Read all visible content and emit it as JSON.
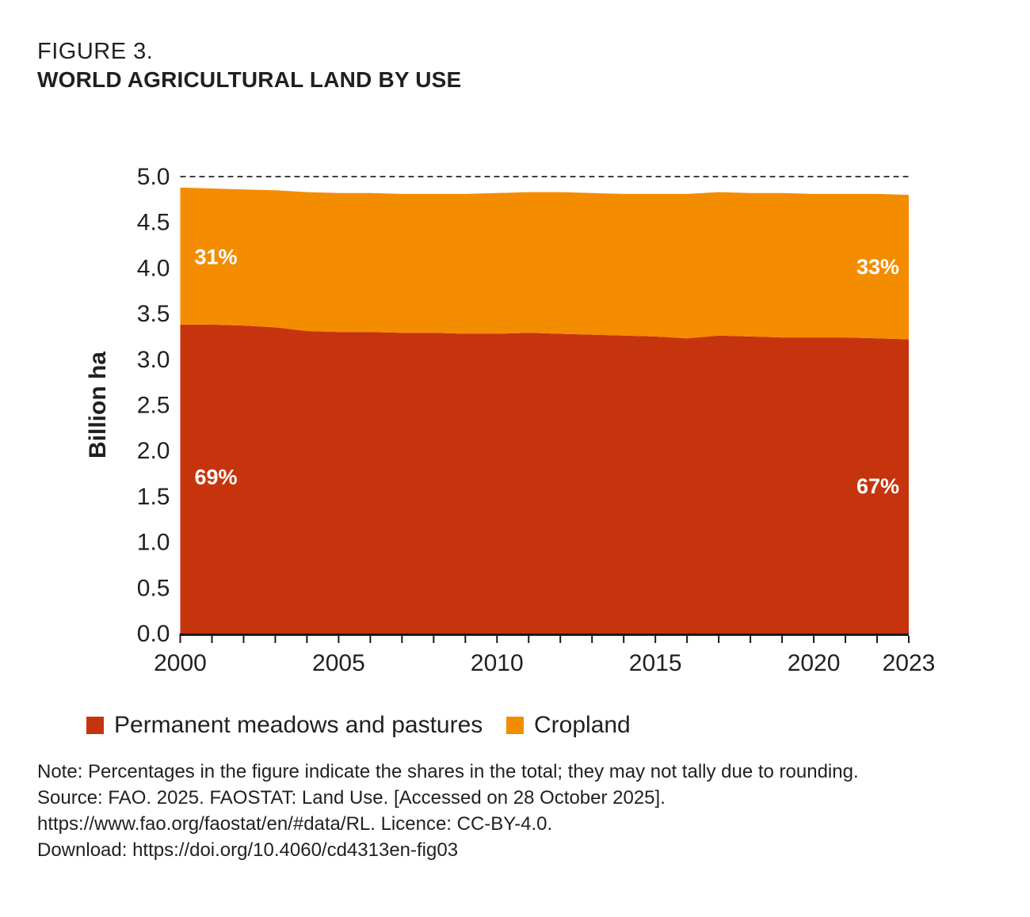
{
  "header": {
    "figure_label": "FIGURE 3.",
    "title": "WORLD AGRICULTURAL LAND BY USE"
  },
  "chart_data": {
    "type": "area",
    "stacked": true,
    "title": "WORLD AGRICULTURAL LAND BY USE",
    "xlabel": "",
    "ylabel": "Billion ha",
    "ylim": [
      0,
      5.0
    ],
    "grid": "none",
    "legend_position": "bottom",
    "x": [
      2000,
      2001,
      2002,
      2003,
      2004,
      2005,
      2006,
      2007,
      2008,
      2009,
      2010,
      2011,
      2012,
      2013,
      2014,
      2015,
      2016,
      2017,
      2018,
      2019,
      2020,
      2021,
      2022,
      2023
    ],
    "x_tick_labels": [
      "2000",
      "2005",
      "2010",
      "2015",
      "2020",
      "2023"
    ],
    "y_tick_labels": [
      "0.0",
      "0.5",
      "1.0",
      "1.5",
      "2.0",
      "2.5",
      "3.0",
      "3.5",
      "4.0",
      "4.5",
      "5.0"
    ],
    "reference_line": {
      "value": 5.0,
      "style": "dashed",
      "color": "#404040"
    },
    "series": [
      {
        "name": "Permanent meadows and pastures",
        "color": "#C6340E",
        "values": [
          3.38,
          3.38,
          3.37,
          3.35,
          3.31,
          3.3,
          3.3,
          3.29,
          3.29,
          3.28,
          3.28,
          3.29,
          3.28,
          3.27,
          3.26,
          3.25,
          3.23,
          3.26,
          3.25,
          3.24,
          3.24,
          3.24,
          3.23,
          3.22
        ]
      },
      {
        "name": "Cropland",
        "color": "#F48C00",
        "values": [
          1.5,
          1.49,
          1.49,
          1.5,
          1.52,
          1.52,
          1.52,
          1.52,
          1.52,
          1.53,
          1.54,
          1.54,
          1.55,
          1.55,
          1.55,
          1.56,
          1.58,
          1.57,
          1.57,
          1.58,
          1.57,
          1.57,
          1.58,
          1.58
        ]
      }
    ],
    "annotations": [
      {
        "text": "31%",
        "x": 2000.45,
        "y": 4.13,
        "anchor": "start",
        "color": "#FFFFFF"
      },
      {
        "text": "69%",
        "x": 2000.45,
        "y": 1.72,
        "anchor": "start",
        "color": "#FFFFFF"
      },
      {
        "text": "33%",
        "x": 2022.7,
        "y": 4.02,
        "anchor": "end",
        "color": "#FFFFFF"
      },
      {
        "text": "67%",
        "x": 2022.7,
        "y": 1.62,
        "anchor": "end",
        "color": "#FFFFFF"
      }
    ]
  },
  "notes": {
    "lines": [
      "Note: Percentages in the figure indicate the shares in the total; they may not tally due to rounding.",
      "Source: FAO. 2025. FAOSTAT: Land Use. [Accessed on 28 October 2025].",
      "https://www.fao.org/faostat/en/#data/RL. Licence: CC-BY-4.0.",
      "Download: https://doi.org/10.4060/cd4313en-fig03"
    ]
  }
}
